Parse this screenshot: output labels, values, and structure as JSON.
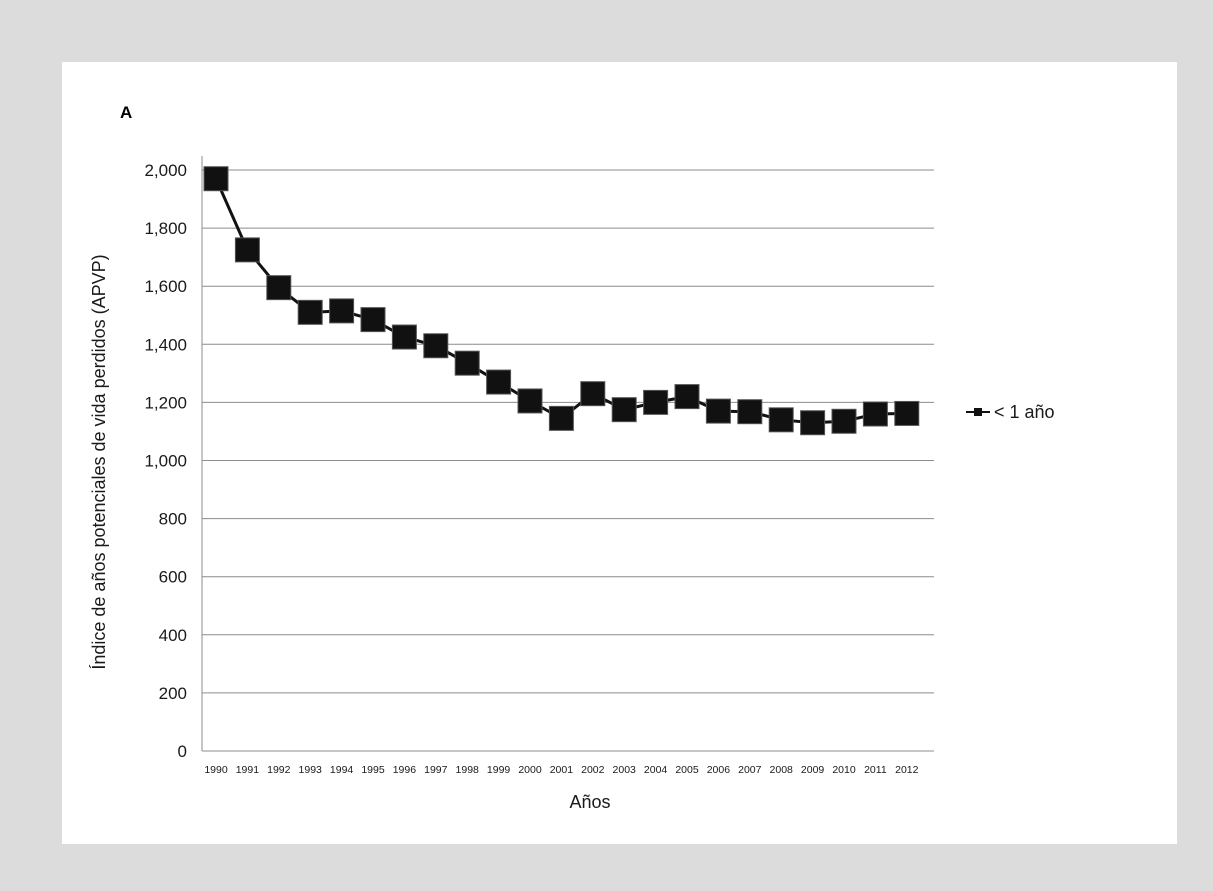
{
  "panel_label": "A",
  "chart_data": {
    "type": "line",
    "xlabel": "Años",
    "ylabel": "Índice de años potenciales de vida perdidos (APVP)",
    "ylim": [
      0,
      2000
    ],
    "yticks": [
      0,
      200,
      400,
      600,
      800,
      1000,
      1200,
      1400,
      1600,
      1800,
      2000
    ],
    "ytick_labels": [
      "0",
      "200",
      "400",
      "600",
      "800",
      "1,000",
      "1,200",
      "1,400",
      "1,600",
      "1,800",
      "2,000"
    ],
    "categories": [
      "1990",
      "1991",
      "1992",
      "1993",
      "1994",
      "1995",
      "1996",
      "1997",
      "1998",
      "1999",
      "2000",
      "2001",
      "2002",
      "2003",
      "2004",
      "2005",
      "2006",
      "2007",
      "2008",
      "2009",
      "2010",
      "2011",
      "2012"
    ],
    "grid": "horizontal",
    "legend_position": "right",
    "series": [
      {
        "name": "< 1 año",
        "color": "#111111",
        "marker": "square",
        "values": [
          1970,
          1725,
          1595,
          1510,
          1515,
          1485,
          1425,
          1395,
          1335,
          1270,
          1205,
          1145,
          1230,
          1175,
          1200,
          1220,
          1170,
          1168,
          1140,
          1130,
          1135,
          1160,
          1162
        ]
      }
    ]
  }
}
